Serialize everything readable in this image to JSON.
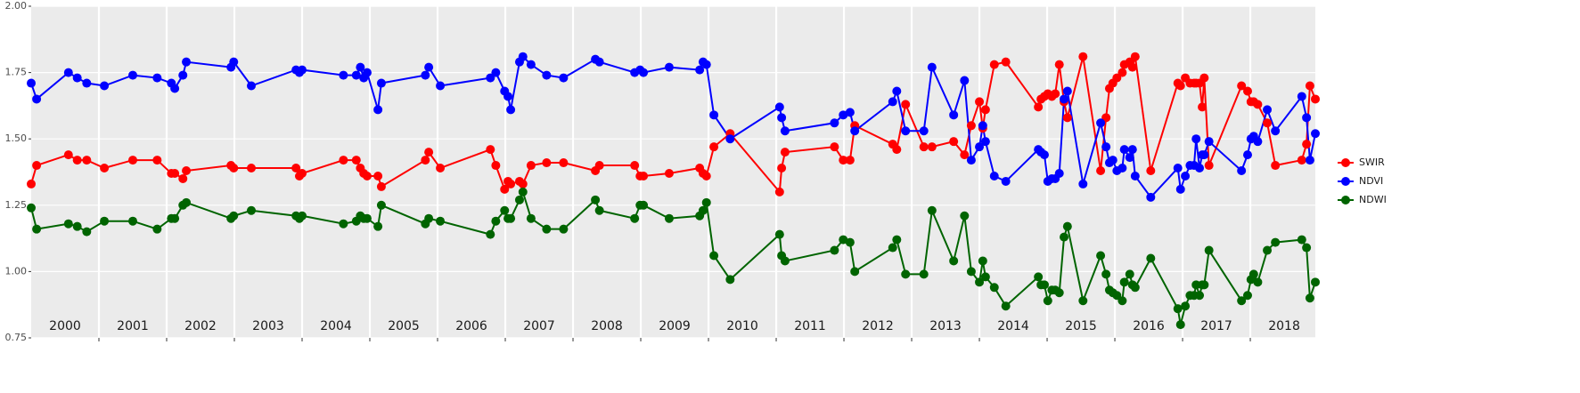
{
  "chart_data": {
    "type": "line",
    "x": [
      2000.0,
      2000.08,
      2000.55,
      2000.68,
      2000.82,
      2001.08,
      2001.5,
      2001.86,
      2002.07,
      2002.12,
      2002.24,
      2002.29,
      2002.95,
      2002.99,
      2003.25,
      2003.91,
      2003.96,
      2004.0,
      2004.61,
      2004.8,
      2004.86,
      2004.91,
      2004.96,
      2005.12,
      2005.17,
      2005.82,
      2005.87,
      2006.04,
      2006.78,
      2006.86,
      2006.99,
      2007.04,
      2007.08,
      2007.21,
      2007.26,
      2007.38,
      2007.61,
      2007.86,
      2008.33,
      2008.39,
      2008.91,
      2008.99,
      2009.04,
      2009.42,
      2009.87,
      2009.92,
      2009.97,
      2010.08,
      2010.32,
      2011.05,
      2011.08,
      2011.13,
      2011.86,
      2011.99,
      2012.09,
      2012.16,
      2012.72,
      2012.78,
      2012.91,
      2013.18,
      2013.3,
      2013.62,
      2013.78,
      2013.88,
      2014.0,
      2014.05,
      2014.09,
      2014.22,
      2014.39,
      2014.87,
      2014.91,
      2014.96,
      2015.01,
      2015.07,
      2015.12,
      2015.18,
      2015.25,
      2015.3,
      2015.53,
      2015.79,
      2015.87,
      2015.92,
      2015.97,
      2016.03,
      2016.11,
      2016.14,
      2016.22,
      2016.26,
      2016.3,
      2016.53,
      2016.93,
      2016.97,
      2017.04,
      2017.11,
      2017.17,
      2017.2,
      2017.25,
      2017.29,
      2017.32,
      2017.39,
      2017.87,
      2017.96,
      2018.01,
      2018.05,
      2018.11,
      2018.25,
      2018.37,
      2018.76,
      2018.83,
      2018.88,
      2018.96
    ],
    "series": [
      {
        "name": "SWIR",
        "color": "#ff0000",
        "values": [
          1.33,
          1.4,
          1.44,
          1.42,
          1.42,
          1.39,
          1.42,
          1.42,
          1.37,
          1.37,
          1.35,
          1.38,
          1.4,
          1.39,
          1.39,
          1.39,
          1.36,
          1.37,
          1.42,
          1.42,
          1.39,
          1.37,
          1.36,
          1.36,
          1.32,
          1.42,
          1.45,
          1.39,
          1.46,
          1.4,
          1.31,
          1.34,
          1.33,
          1.34,
          1.33,
          1.4,
          1.41,
          1.41,
          1.38,
          1.4,
          1.4,
          1.36,
          1.36,
          1.37,
          1.39,
          1.37,
          1.36,
          1.47,
          1.52,
          1.3,
          1.39,
          1.45,
          1.47,
          1.42,
          1.42,
          1.55,
          1.48,
          1.46,
          1.63,
          1.47,
          1.47,
          1.49,
          1.44,
          1.55,
          1.64,
          1.54,
          1.61,
          1.78,
          1.79,
          1.62,
          1.65,
          1.66,
          1.67,
          1.66,
          1.67,
          1.78,
          1.64,
          1.58,
          1.81,
          1.38,
          1.58,
          1.69,
          1.71,
          1.73,
          1.75,
          1.78,
          1.79,
          1.77,
          1.81,
          1.38,
          1.71,
          1.7,
          1.73,
          1.71,
          1.71,
          1.71,
          1.71,
          1.62,
          1.73,
          1.4,
          1.7,
          1.68,
          1.64,
          1.64,
          1.63,
          1.56,
          1.4,
          1.42,
          1.48,
          1.7,
          1.65
        ]
      },
      {
        "name": "NDVI",
        "color": "#0000ff",
        "values": [
          1.71,
          1.65,
          1.75,
          1.73,
          1.71,
          1.7,
          1.74,
          1.73,
          1.71,
          1.69,
          1.74,
          1.79,
          1.77,
          1.79,
          1.7,
          1.76,
          1.75,
          1.76,
          1.74,
          1.74,
          1.77,
          1.73,
          1.75,
          1.61,
          1.71,
          1.74,
          1.77,
          1.7,
          1.73,
          1.75,
          1.68,
          1.66,
          1.61,
          1.79,
          1.81,
          1.78,
          1.74,
          1.73,
          1.8,
          1.79,
          1.75,
          1.76,
          1.75,
          1.77,
          1.76,
          1.79,
          1.78,
          1.59,
          1.5,
          1.62,
          1.58,
          1.53,
          1.56,
          1.59,
          1.6,
          1.53,
          1.64,
          1.68,
          1.53,
          1.53,
          1.77,
          1.59,
          1.72,
          1.42,
          1.47,
          1.55,
          1.49,
          1.36,
          1.34,
          1.46,
          1.45,
          1.44,
          1.34,
          1.35,
          1.35,
          1.37,
          1.65,
          1.68,
          1.33,
          1.56,
          1.47,
          1.41,
          1.42,
          1.38,
          1.39,
          1.46,
          1.43,
          1.46,
          1.36,
          1.28,
          1.39,
          1.31,
          1.36,
          1.4,
          1.4,
          1.5,
          1.39,
          1.44,
          1.44,
          1.49,
          1.38,
          1.44,
          1.5,
          1.51,
          1.49,
          1.61,
          1.53,
          1.66,
          1.58,
          1.42,
          1.52
        ]
      },
      {
        "name": "NDWI",
        "color": "#006400",
        "values": [
          1.24,
          1.16,
          1.18,
          1.17,
          1.15,
          1.19,
          1.19,
          1.16,
          1.2,
          1.2,
          1.25,
          1.26,
          1.2,
          1.21,
          1.23,
          1.21,
          1.2,
          1.21,
          1.18,
          1.19,
          1.21,
          1.2,
          1.2,
          1.17,
          1.25,
          1.18,
          1.2,
          1.19,
          1.14,
          1.19,
          1.23,
          1.2,
          1.2,
          1.27,
          1.3,
          1.2,
          1.16,
          1.16,
          1.27,
          1.23,
          1.2,
          1.25,
          1.25,
          1.2,
          1.21,
          1.23,
          1.26,
          1.06,
          0.97,
          1.14,
          1.06,
          1.04,
          1.08,
          1.12,
          1.11,
          1.0,
          1.09,
          1.12,
          0.99,
          0.99,
          1.23,
          1.04,
          1.21,
          1.0,
          0.96,
          1.04,
          0.98,
          0.94,
          0.87,
          0.98,
          0.95,
          0.95,
          0.89,
          0.93,
          0.93,
          0.92,
          1.13,
          1.17,
          0.89,
          1.06,
          0.99,
          0.93,
          0.92,
          0.91,
          0.89,
          0.96,
          0.99,
          0.95,
          0.94,
          1.05,
          0.86,
          0.8,
          0.87,
          0.91,
          0.91,
          0.95,
          0.91,
          0.95,
          0.95,
          1.08,
          0.89,
          0.91,
          0.97,
          0.99,
          0.96,
          1.08,
          1.11,
          1.12,
          1.09,
          0.9,
          0.96
        ]
      }
    ],
    "xlim": [
      2000,
      2018.96
    ],
    "xticks": [
      2001,
      2002,
      2003,
      2004,
      2005,
      2006,
      2007,
      2008,
      2009,
      2010,
      2011,
      2012,
      2013,
      2014,
      2015,
      2016,
      2017,
      2018
    ],
    "year_labels": [
      "2000",
      "2001",
      "2002",
      "2003",
      "2004",
      "2005",
      "2006",
      "2007",
      "2008",
      "2009",
      "2010",
      "2011",
      "2012",
      "2013",
      "2014",
      "2015",
      "2016",
      "2017",
      "2018"
    ],
    "ylim": [
      0.75,
      2.0
    ],
    "yticks": [
      {
        "value": 0.75,
        "label": "0.75"
      },
      {
        "value": 1.0,
        "label": "1.00"
      },
      {
        "value": 1.25,
        "label": "1.25"
      },
      {
        "value": 1.5,
        "label": "1.50"
      },
      {
        "value": 1.75,
        "label": "1.75"
      },
      {
        "value": 2.0,
        "label": "2.00"
      }
    ],
    "grid": true,
    "legend": "right"
  }
}
